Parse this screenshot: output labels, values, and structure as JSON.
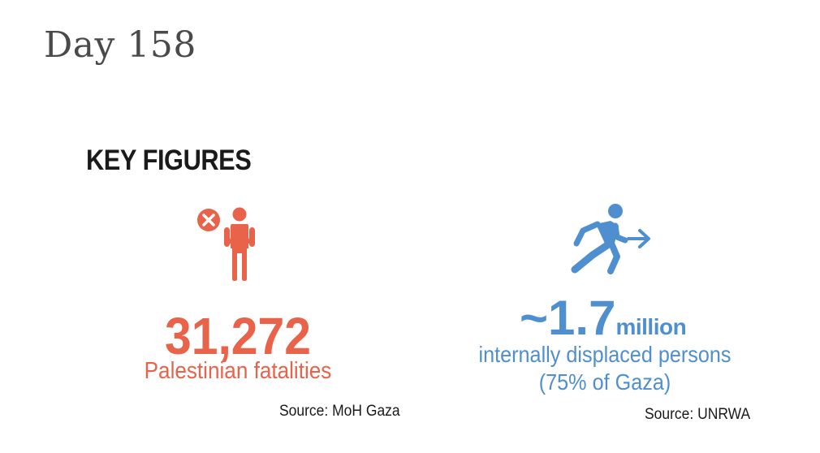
{
  "header": {
    "day_title": "Day 158"
  },
  "section": {
    "heading": "KEY FIGURES"
  },
  "figures": {
    "fatalities": {
      "icon": "person-fatality-icon",
      "value": "31,272",
      "label": "Palestinian fatalities",
      "source": "Source: MoH Gaza",
      "color": "#e8634a"
    },
    "displaced": {
      "icon": "person-running-arrow-icon",
      "value": "~1.7",
      "unit": "million",
      "label_line1": "internally displaced persons",
      "label_line2": "(75% of Gaza)",
      "source": "Source: UNRWA",
      "color": "#4f8fcf"
    }
  }
}
